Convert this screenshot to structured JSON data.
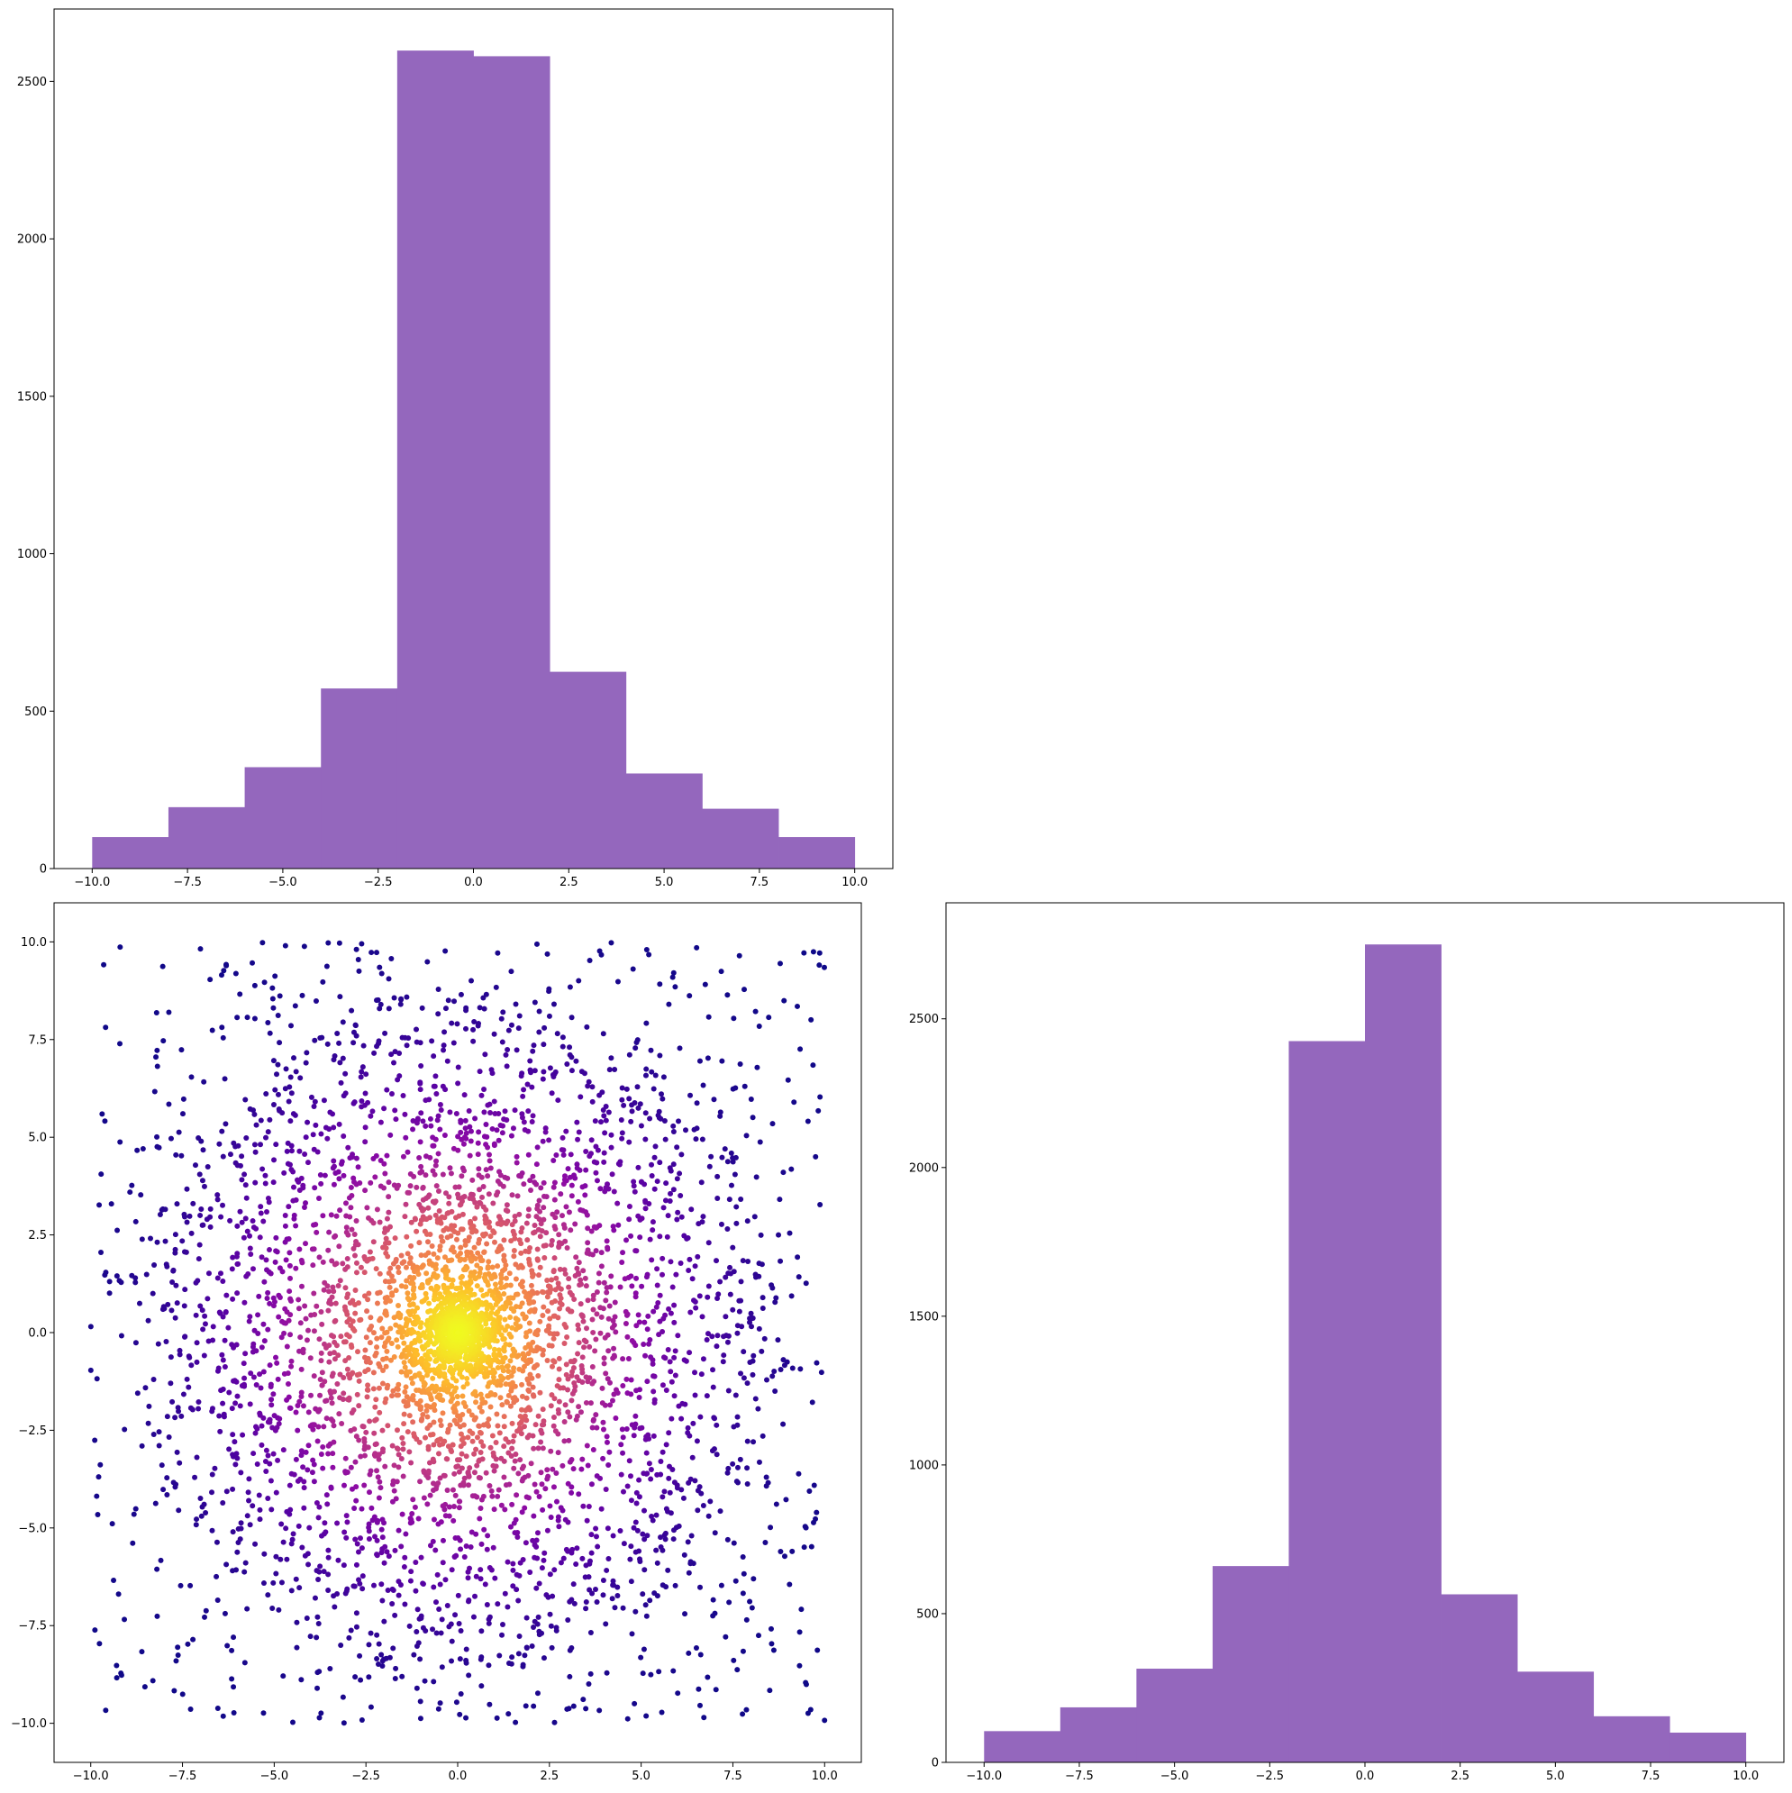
{
  "colors": {
    "bar": "#9467bd",
    "axis": "#000000",
    "colormap": [
      "#0d0887",
      "#5402a3",
      "#8b0aa5",
      "#b83289",
      "#db5c68",
      "#f48849",
      "#febd2a",
      "#f0f921"
    ]
  },
  "chart_data": [
    {
      "id": "top_left_histogram",
      "type": "bar",
      "grid": false,
      "title": "",
      "xlabel": "",
      "ylabel": "",
      "bin_edges": [
        -10,
        -8,
        -6,
        -4,
        -2,
        0,
        2,
        4,
        6,
        8,
        10
      ],
      "values": [
        100,
        195,
        322,
        572,
        2598,
        2580,
        625,
        302,
        190,
        100
      ],
      "xlim": [
        -11,
        11
      ],
      "ylim": [
        0,
        2730
      ],
      "xticks": [
        -10.0,
        -7.5,
        -5.0,
        -2.5,
        0.0,
        2.5,
        5.0,
        7.5,
        10.0
      ],
      "xtick_labels": [
        "−10.0",
        "−7.5",
        "−5.0",
        "−2.5",
        "0.0",
        "2.5",
        "5.0",
        "7.5",
        "10.0"
      ],
      "yticks": [
        0,
        500,
        1000,
        1500,
        2000,
        2500
      ],
      "ytick_labels": [
        "0",
        "500",
        "1000",
        "1500",
        "2000",
        "2500"
      ]
    },
    {
      "id": "bottom_left_scatter",
      "type": "scatter",
      "grid": false,
      "title": "",
      "xlabel": "",
      "ylabel": "",
      "colormap": "plasma",
      "color_encoding": "point density (dark purple sparse, yellow dense at center)",
      "n_points": 5000,
      "point_groups": [
        {
          "x_range": [
            -10,
            10
          ],
          "y_range": [
            -10,
            10
          ],
          "approx_count": 1000,
          "distribution": "uniform"
        },
        {
          "center": [
            0,
            0
          ],
          "spread": 4.0,
          "approx_count": 4000,
          "distribution": "concentrated around center"
        }
      ],
      "xlim": [
        -11,
        11
      ],
      "ylim": [
        -11,
        11
      ],
      "xticks": [
        -10.0,
        -7.5,
        -5.0,
        -2.5,
        0.0,
        2.5,
        5.0,
        7.5,
        10.0
      ],
      "xtick_labels": [
        "−10.0",
        "−7.5",
        "−5.0",
        "−2.5",
        "0.0",
        "2.5",
        "5.0",
        "7.5",
        "10.0"
      ],
      "yticks": [
        -10.0,
        -7.5,
        -5.0,
        -2.5,
        0.0,
        2.5,
        5.0,
        7.5,
        10.0
      ],
      "ytick_labels": [
        "−10.0",
        "−7.5",
        "−5.0",
        "−2.5",
        "0.0",
        "2.5",
        "5.0",
        "7.5",
        "10.0"
      ]
    },
    {
      "id": "bottom_right_histogram",
      "type": "bar",
      "grid": false,
      "title": "",
      "xlabel": "",
      "ylabel": "",
      "bin_edges": [
        -10,
        -8,
        -6,
        -4,
        -2,
        0,
        2,
        4,
        6,
        8,
        10
      ],
      "values": [
        105,
        185,
        315,
        660,
        2425,
        2750,
        565,
        305,
        155,
        100
      ],
      "xlim": [
        -11,
        11
      ],
      "ylim": [
        0,
        2890
      ],
      "xticks": [
        -10.0,
        -7.5,
        -5.0,
        -2.5,
        0.0,
        2.5,
        5.0,
        7.5,
        10.0
      ],
      "xtick_labels": [
        "−10.0",
        "−7.5",
        "−5.0",
        "−2.5",
        "0.0",
        "2.5",
        "5.0",
        "7.5",
        "10.0"
      ],
      "yticks": [
        0,
        500,
        1000,
        1500,
        2000,
        2500
      ],
      "ytick_labels": [
        "0",
        "500",
        "1000",
        "1500",
        "2000",
        "2500"
      ]
    }
  ]
}
